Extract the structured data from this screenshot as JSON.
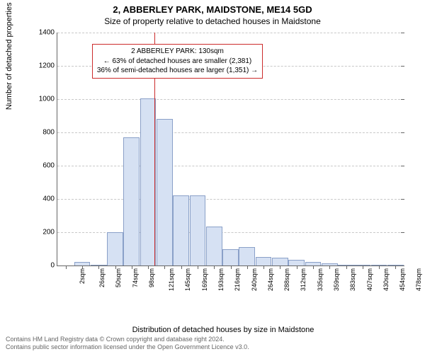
{
  "titles": {
    "main": "2, ABBERLEY PARK, MAIDSTONE, ME14 5GD",
    "sub": "Size of property relative to detached houses in Maidstone"
  },
  "chart": {
    "type": "histogram",
    "ylabel": "Number of detached properties",
    "xlabel": "Distribution of detached houses by size in Maidstone",
    "ylim": [
      0,
      1400
    ],
    "ytick_step": 200,
    "yticks": [
      0,
      200,
      400,
      600,
      800,
      1000,
      1200,
      1400
    ],
    "xticks": [
      "2sqm",
      "26sqm",
      "50sqm",
      "74sqm",
      "98sqm",
      "121sqm",
      "145sqm",
      "169sqm",
      "193sqm",
      "216sqm",
      "240sqm",
      "264sqm",
      "288sqm",
      "312sqm",
      "335sqm",
      "359sqm",
      "383sqm",
      "407sqm",
      "430sqm",
      "454sqm",
      "478sqm"
    ],
    "x_range_sqm": [
      2,
      478
    ],
    "bars": [
      {
        "x_sqm": 26,
        "value": 20
      },
      {
        "x_sqm": 50,
        "value": 5
      },
      {
        "x_sqm": 74,
        "value": 200
      },
      {
        "x_sqm": 98,
        "value": 770
      },
      {
        "x_sqm": 121,
        "value": 1005
      },
      {
        "x_sqm": 145,
        "value": 880
      },
      {
        "x_sqm": 169,
        "value": 420
      },
      {
        "x_sqm": 193,
        "value": 420
      },
      {
        "x_sqm": 216,
        "value": 235
      },
      {
        "x_sqm": 240,
        "value": 100
      },
      {
        "x_sqm": 264,
        "value": 110
      },
      {
        "x_sqm": 288,
        "value": 50
      },
      {
        "x_sqm": 312,
        "value": 45
      },
      {
        "x_sqm": 335,
        "value": 35
      },
      {
        "x_sqm": 359,
        "value": 20
      },
      {
        "x_sqm": 383,
        "value": 12
      },
      {
        "x_sqm": 407,
        "value": 2
      },
      {
        "x_sqm": 430,
        "value": 2
      },
      {
        "x_sqm": 454,
        "value": 2
      },
      {
        "x_sqm": 478,
        "value": 2
      }
    ],
    "bar_fill": "#d6e1f3",
    "bar_stroke": "#8aa0c8",
    "grid_color": "#c8c8c8",
    "background_color": "#ffffff",
    "axis_color": "#666666",
    "label_fontsize": 11,
    "tick_fontsize": 10,
    "marker": {
      "x_sqm": 130,
      "color": "#cc2b2b"
    },
    "annotation": {
      "lines": [
        "2 ABBERLEY PARK: 130sqm",
        "← 63% of detached houses are smaller (2,381)",
        "36% of semi-detached houses are larger (1,351) →"
      ],
      "border_color": "#cc2b2b",
      "left_sqm": 40,
      "top_value": 1330
    }
  },
  "footer": {
    "line1": "Contains HM Land Registry data © Crown copyright and database right 2024.",
    "line2": "Contains public sector information licensed under the Open Government Licence v3.0."
  }
}
